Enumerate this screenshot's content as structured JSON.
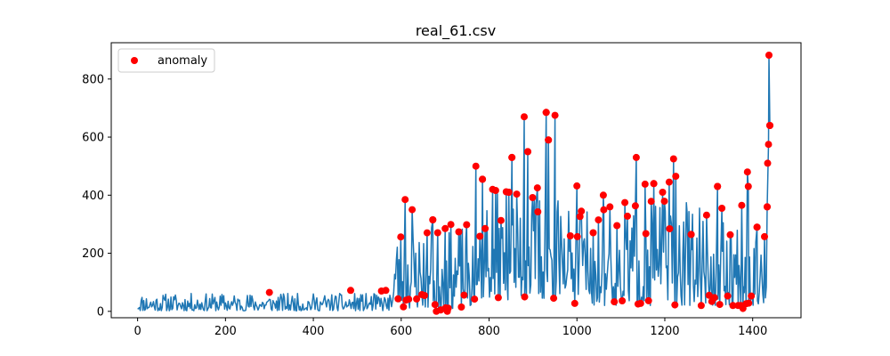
{
  "chart_data": {
    "type": "line",
    "title": "real_61.csv",
    "xlabel": "",
    "ylabel": "",
    "xlim": [
      -60,
      1510
    ],
    "ylim": [
      -22,
      925
    ],
    "xticks": [
      0,
      200,
      400,
      600,
      800,
      1000,
      1200,
      1400
    ],
    "yticks": [
      0,
      200,
      400,
      600,
      800
    ],
    "grid": false,
    "legend": {
      "placement": "top-left",
      "entries": [
        {
          "label": "anomaly",
          "color": "#ff0000",
          "marker": "circle"
        }
      ]
    },
    "line_color": "#1f77b4",
    "anomaly_color": "#ff0000",
    "regimes": [
      {
        "x_start": 0,
        "x_end": 580,
        "low": 2,
        "high": 62,
        "step": 2,
        "seed": 11
      },
      {
        "x_start": 581,
        "x_end": 760,
        "low": 10,
        "high": 300,
        "step": 2,
        "seed": 23
      },
      {
        "x_start": 761,
        "x_end": 960,
        "low": 40,
        "high": 420,
        "step": 2,
        "seed": 37
      },
      {
        "x_start": 961,
        "x_end": 1300,
        "low": 20,
        "high": 380,
        "step": 2,
        "seed": 51
      },
      {
        "x_start": 1301,
        "x_end": 1439,
        "low": 20,
        "high": 320,
        "step": 2,
        "seed": 67
      }
    ],
    "peaks": [
      {
        "x": 609,
        "y": 385
      },
      {
        "x": 625,
        "y": 350
      },
      {
        "x": 672,
        "y": 315
      },
      {
        "x": 700,
        "y": 285
      },
      {
        "x": 770,
        "y": 500
      },
      {
        "x": 785,
        "y": 455
      },
      {
        "x": 808,
        "y": 420
      },
      {
        "x": 845,
        "y": 410
      },
      {
        "x": 852,
        "y": 530
      },
      {
        "x": 880,
        "y": 670
      },
      {
        "x": 888,
        "y": 550
      },
      {
        "x": 910,
        "y": 425
      },
      {
        "x": 930,
        "y": 685
      },
      {
        "x": 935,
        "y": 590
      },
      {
        "x": 950,
        "y": 675
      },
      {
        "x": 985,
        "y": 260
      },
      {
        "x": 1000,
        "y": 432
      },
      {
        "x": 1010,
        "y": 345
      },
      {
        "x": 1060,
        "y": 400
      },
      {
        "x": 1075,
        "y": 360
      },
      {
        "x": 1135,
        "y": 530
      },
      {
        "x": 1155,
        "y": 438
      },
      {
        "x": 1175,
        "y": 440
      },
      {
        "x": 1195,
        "y": 410
      },
      {
        "x": 1210,
        "y": 445
      },
      {
        "x": 1220,
        "y": 525
      },
      {
        "x": 1225,
        "y": 465
      },
      {
        "x": 1260,
        "y": 265
      },
      {
        "x": 1320,
        "y": 430
      },
      {
        "x": 1330,
        "y": 355
      },
      {
        "x": 1375,
        "y": 365
      },
      {
        "x": 1388,
        "y": 480
      },
      {
        "x": 1390,
        "y": 430
      },
      {
        "x": 1410,
        "y": 290
      },
      {
        "x": 1437,
        "y": 882
      },
      {
        "x": 1439,
        "y": 640
      },
      {
        "x": 1436,
        "y": 575
      },
      {
        "x": 1434,
        "y": 510
      },
      {
        "x": 1433,
        "y": 360
      }
    ],
    "dips": [
      {
        "x": 680,
        "y": 0
      },
      {
        "x": 690,
        "y": 5
      },
      {
        "x": 705,
        "y": 0
      },
      {
        "x": 1378,
        "y": 10
      }
    ],
    "early_anomalies": [
      {
        "x": 300,
        "y": 65
      },
      {
        "x": 485,
        "y": 72
      },
      {
        "x": 555,
        "y": 70
      },
      {
        "x": 565,
        "y": 72
      }
    ],
    "anomaly_rule": {
      "x_min": 585,
      "y_threshold": 255,
      "low_threshold": 60,
      "every": 3
    }
  }
}
